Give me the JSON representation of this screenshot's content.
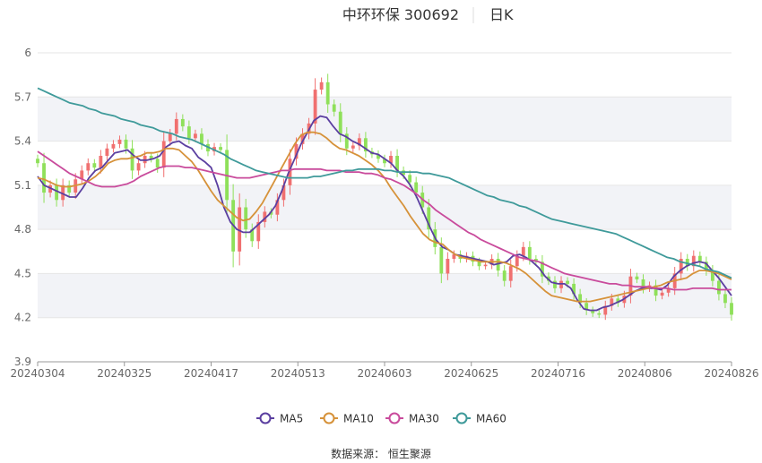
{
  "header": {
    "title": "中环环保 300692",
    "period": "日K"
  },
  "source": "数据来源： 恒生聚源",
  "chart_data": {
    "type": "candlestick",
    "x_tick_labels": [
      "20240304",
      "20240325",
      "20240417",
      "20240513",
      "20240603",
      "20240625",
      "20240716",
      "20240806",
      "20240826"
    ],
    "y_tick_labels": [
      "3.9",
      "4.2",
      "4.5",
      "4.8",
      "5.1",
      "5.4",
      "5.7",
      "6"
    ],
    "ylim": [
      3.9,
      6.0
    ],
    "grid": "horizontal",
    "legend_position": "bottom",
    "colors": {
      "up": "#f07070",
      "down": "#8fe05a",
      "band": "#f2f3f7",
      "axis": "#999999"
    },
    "candles_close": [
      5.25,
      5.05,
      5.1,
      5.0,
      5.1,
      5.05,
      5.14,
      5.2,
      5.25,
      5.22,
      5.3,
      5.35,
      5.38,
      5.41,
      5.35,
      5.2,
      5.25,
      5.3,
      5.28,
      5.22,
      5.4,
      5.45,
      5.55,
      5.5,
      5.42,
      5.45,
      5.38,
      5.33,
      5.36,
      5.34,
      5.0,
      4.65,
      4.95,
      4.8,
      4.72,
      4.85,
      4.92,
      4.9,
      5.0,
      5.1,
      5.28,
      5.38,
      5.45,
      5.52,
      5.75,
      5.8,
      5.65,
      5.6,
      5.45,
      5.35,
      5.37,
      5.42,
      5.33,
      5.31,
      5.28,
      5.25,
      5.3,
      5.2,
      5.17,
      5.12,
      5.05,
      4.95,
      4.8,
      4.68,
      4.5,
      4.6,
      4.63,
      4.6,
      4.62,
      4.58,
      4.55,
      4.56,
      4.6,
      4.52,
      4.45,
      4.55,
      4.62,
      4.68,
      4.6,
      4.58,
      4.48,
      4.45,
      4.4,
      4.45,
      4.43,
      4.36,
      4.3,
      4.25,
      4.23,
      4.22,
      4.28,
      4.33,
      4.3,
      4.35,
      4.48,
      4.46,
      4.4,
      4.42,
      4.35,
      4.37,
      4.4,
      4.5,
      4.6,
      4.55,
      4.62,
      4.58,
      4.52,
      4.45,
      4.36,
      4.3,
      4.22
    ],
    "series": [
      {
        "name": "MA5",
        "color": "#5b3fa0",
        "values": [
          5.16,
          5.1,
          5.08,
          5.06,
          5.04,
          5.02,
          5.02,
          5.08,
          5.15,
          5.2,
          5.22,
          5.27,
          5.32,
          5.33,
          5.34,
          5.3,
          5.27,
          5.27,
          5.28,
          5.3,
          5.36,
          5.39,
          5.4,
          5.37,
          5.35,
          5.29,
          5.26,
          5.22,
          5.1,
          4.95,
          4.85,
          4.8,
          4.78,
          4.78,
          4.82,
          4.86,
          4.9,
          4.96,
          5.06,
          5.18,
          5.28,
          5.38,
          5.46,
          5.54,
          5.57,
          5.56,
          5.5,
          5.45,
          5.43,
          5.4,
          5.38,
          5.35,
          5.32,
          5.31,
          5.28,
          5.25,
          5.2,
          5.16,
          5.1,
          5.02,
          4.92,
          4.82,
          4.73,
          4.68,
          4.66,
          4.63,
          4.62,
          4.61,
          4.6,
          4.59,
          4.58,
          4.56,
          4.57,
          4.58,
          4.62,
          4.63,
          4.61,
          4.58,
          4.54,
          4.48,
          4.44,
          4.43,
          4.43,
          4.4,
          4.32,
          4.26,
          4.25,
          4.25,
          4.27,
          4.28,
          4.3,
          4.32,
          4.35,
          4.38,
          4.4,
          4.4,
          4.4,
          4.39,
          4.42,
          4.48,
          4.52,
          4.55,
          4.57,
          4.58,
          4.57,
          4.52,
          4.47,
          4.41,
          4.35
        ]
      },
      {
        "name": "MA10",
        "color": "#d6923a",
        "values": [
          5.15,
          5.14,
          5.12,
          5.1,
          5.09,
          5.09,
          5.1,
          5.11,
          5.13,
          5.16,
          5.2,
          5.25,
          5.27,
          5.28,
          5.28,
          5.29,
          5.3,
          5.32,
          5.32,
          5.33,
          5.35,
          5.35,
          5.34,
          5.3,
          5.26,
          5.2,
          5.13,
          5.06,
          5.0,
          4.96,
          4.92,
          4.88,
          4.86,
          4.87,
          4.92,
          4.98,
          5.06,
          5.14,
          5.22,
          5.3,
          5.38,
          5.44,
          5.46,
          5.46,
          5.45,
          5.42,
          5.38,
          5.35,
          5.34,
          5.32,
          5.3,
          5.27,
          5.24,
          5.2,
          5.15,
          5.08,
          5.02,
          4.96,
          4.89,
          4.83,
          4.77,
          4.73,
          4.71,
          4.7,
          4.66,
          4.63,
          4.61,
          4.6,
          4.59,
          4.58,
          4.58,
          4.58,
          4.58,
          4.57,
          4.55,
          4.53,
          4.5,
          4.46,
          4.42,
          4.38,
          4.35,
          4.34,
          4.33,
          4.32,
          4.31,
          4.31,
          4.31,
          4.32,
          4.33,
          4.34,
          4.35,
          4.36,
          4.37,
          4.38,
          4.39,
          4.4,
          4.41,
          4.42,
          4.44,
          4.45,
          4.46,
          4.47,
          4.5,
          4.52,
          4.52,
          4.51,
          4.5,
          4.48,
          4.46
        ]
      },
      {
        "name": "MA30",
        "color": "#c94b9c",
        "values": [
          5.33,
          5.3,
          5.27,
          5.24,
          5.21,
          5.18,
          5.16,
          5.14,
          5.12,
          5.1,
          5.09,
          5.09,
          5.09,
          5.1,
          5.11,
          5.13,
          5.16,
          5.18,
          5.2,
          5.22,
          5.23,
          5.23,
          5.23,
          5.22,
          5.22,
          5.21,
          5.2,
          5.19,
          5.18,
          5.17,
          5.16,
          5.15,
          5.15,
          5.15,
          5.16,
          5.17,
          5.18,
          5.19,
          5.2,
          5.2,
          5.21,
          5.21,
          5.21,
          5.21,
          5.21,
          5.2,
          5.2,
          5.2,
          5.19,
          5.19,
          5.19,
          5.18,
          5.18,
          5.17,
          5.15,
          5.14,
          5.12,
          5.1,
          5.07,
          5.04,
          5.0,
          4.97,
          4.93,
          4.9,
          4.87,
          4.84,
          4.81,
          4.78,
          4.76,
          4.73,
          4.71,
          4.69,
          4.67,
          4.65,
          4.63,
          4.61,
          4.6,
          4.59,
          4.58,
          4.56,
          4.54,
          4.52,
          4.5,
          4.49,
          4.48,
          4.47,
          4.46,
          4.45,
          4.44,
          4.43,
          4.43,
          4.42,
          4.42,
          4.41,
          4.41,
          4.41,
          4.4,
          4.4,
          4.4,
          4.39,
          4.39,
          4.39,
          4.4,
          4.4,
          4.4,
          4.4,
          4.39,
          4.39,
          4.39
        ]
      },
      {
        "name": "MA60",
        "color": "#3f9a9a",
        "values": [
          5.76,
          5.74,
          5.72,
          5.7,
          5.68,
          5.66,
          5.65,
          5.64,
          5.62,
          5.61,
          5.59,
          5.58,
          5.57,
          5.55,
          5.54,
          5.53,
          5.51,
          5.5,
          5.49,
          5.47,
          5.46,
          5.45,
          5.43,
          5.42,
          5.41,
          5.39,
          5.37,
          5.35,
          5.33,
          5.31,
          5.28,
          5.26,
          5.24,
          5.22,
          5.2,
          5.19,
          5.18,
          5.17,
          5.16,
          5.15,
          5.15,
          5.15,
          5.15,
          5.16,
          5.16,
          5.17,
          5.18,
          5.19,
          5.2,
          5.2,
          5.21,
          5.21,
          5.21,
          5.21,
          5.2,
          5.2,
          5.19,
          5.19,
          5.19,
          5.19,
          5.18,
          5.18,
          5.17,
          5.16,
          5.15,
          5.13,
          5.11,
          5.09,
          5.07,
          5.05,
          5.03,
          5.02,
          5.0,
          4.99,
          4.98,
          4.96,
          4.95,
          4.93,
          4.91,
          4.89,
          4.87,
          4.86,
          4.85,
          4.84,
          4.83,
          4.82,
          4.81,
          4.8,
          4.79,
          4.78,
          4.77,
          4.75,
          4.73,
          4.71,
          4.69,
          4.67,
          4.65,
          4.63,
          4.61,
          4.6,
          4.58,
          4.57,
          4.56,
          4.55,
          4.53,
          4.52,
          4.51,
          4.49,
          4.47
        ]
      }
    ]
  }
}
